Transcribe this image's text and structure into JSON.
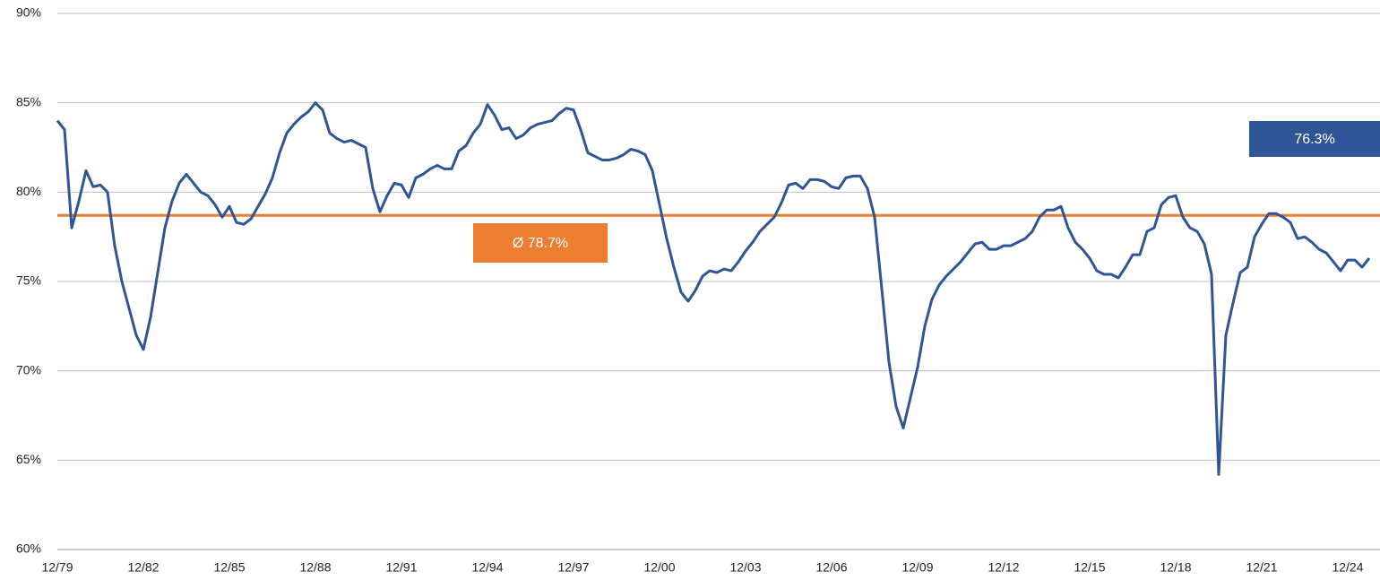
{
  "chart_data": {
    "type": "line",
    "x": [
      "12/79",
      "03/80",
      "06/80",
      "09/80",
      "12/80",
      "03/81",
      "06/81",
      "09/81",
      "12/81",
      "03/82",
      "06/82",
      "09/82",
      "12/82",
      "03/83",
      "06/83",
      "09/83",
      "12/83",
      "03/84",
      "06/84",
      "09/84",
      "12/84",
      "03/85",
      "06/85",
      "09/85",
      "12/85",
      "03/86",
      "06/86",
      "09/86",
      "12/86",
      "03/87",
      "06/87",
      "09/87",
      "12/87",
      "03/88",
      "06/88",
      "09/88",
      "12/88",
      "03/89",
      "06/89",
      "09/89",
      "12/89",
      "03/90",
      "06/90",
      "09/90",
      "12/90",
      "03/91",
      "06/91",
      "09/91",
      "12/91",
      "03/92",
      "06/92",
      "09/92",
      "12/92",
      "03/93",
      "06/93",
      "09/93",
      "12/93",
      "03/94",
      "06/94",
      "09/94",
      "12/94",
      "03/95",
      "06/95",
      "09/95",
      "12/95",
      "03/96",
      "06/96",
      "09/96",
      "12/96",
      "03/97",
      "06/97",
      "09/97",
      "12/97",
      "03/98",
      "06/98",
      "09/98",
      "12/98",
      "03/99",
      "06/99",
      "09/99",
      "12/99",
      "03/00",
      "06/00",
      "09/00",
      "12/00",
      "03/01",
      "06/01",
      "09/01",
      "12/01",
      "03/02",
      "06/02",
      "09/02",
      "12/02",
      "03/03",
      "06/03",
      "09/03",
      "12/03",
      "03/04",
      "06/04",
      "09/04",
      "12/04",
      "03/05",
      "06/05",
      "09/05",
      "12/05",
      "03/06",
      "06/06",
      "09/06",
      "12/06",
      "03/07",
      "06/07",
      "09/07",
      "12/07",
      "03/08",
      "06/08",
      "09/08",
      "12/08",
      "03/09",
      "06/09",
      "09/09",
      "12/09",
      "03/10",
      "06/10",
      "09/10",
      "12/10",
      "03/11",
      "06/11",
      "09/11",
      "12/11",
      "03/12",
      "06/12",
      "09/12",
      "12/12",
      "03/13",
      "06/13",
      "09/13",
      "12/13",
      "03/14",
      "06/14",
      "09/14",
      "12/14",
      "03/15",
      "06/15",
      "09/15",
      "12/15",
      "03/16",
      "06/16",
      "09/16",
      "12/16",
      "03/17",
      "06/17",
      "09/17",
      "12/17",
      "03/18",
      "06/18",
      "09/18",
      "12/18",
      "03/19",
      "06/19",
      "09/19",
      "12/19",
      "03/20",
      "06/20",
      "09/20",
      "12/20",
      "03/21",
      "06/21",
      "09/21",
      "12/21",
      "03/22",
      "06/22",
      "09/22",
      "12/22",
      "03/23",
      "06/23",
      "09/23",
      "12/23",
      "03/24",
      "06/24",
      "09/24",
      "12/24",
      "03/25",
      "06/25",
      "09/25"
    ],
    "values": [
      84.0,
      83.5,
      78.0,
      79.5,
      81.2,
      80.3,
      80.4,
      80.0,
      77.0,
      75.0,
      73.5,
      72.0,
      71.2,
      73.0,
      75.5,
      78.0,
      79.5,
      80.5,
      81.0,
      80.5,
      80.0,
      79.8,
      79.3,
      78.6,
      79.2,
      78.3,
      78.2,
      78.5,
      79.2,
      79.9,
      80.8,
      82.2,
      83.3,
      83.8,
      84.2,
      84.5,
      85.0,
      84.6,
      83.3,
      83.0,
      82.8,
      82.9,
      82.7,
      82.5,
      80.2,
      78.9,
      79.8,
      80.5,
      80.4,
      79.7,
      80.8,
      81.0,
      81.3,
      81.5,
      81.3,
      81.3,
      82.3,
      82.6,
      83.3,
      83.8,
      84.9,
      84.3,
      83.5,
      83.6,
      83.0,
      83.2,
      83.6,
      83.8,
      83.9,
      84.0,
      84.4,
      84.7,
      84.6,
      83.5,
      82.2,
      82.0,
      81.8,
      81.8,
      81.9,
      82.1,
      82.4,
      82.3,
      82.1,
      81.2,
      79.3,
      77.4,
      75.8,
      74.4,
      73.9,
      74.5,
      75.3,
      75.6,
      75.5,
      75.7,
      75.6,
      76.1,
      76.7,
      77.2,
      77.8,
      78.2,
      78.6,
      79.4,
      80.4,
      80.5,
      80.2,
      80.7,
      80.7,
      80.6,
      80.3,
      80.2,
      80.8,
      80.9,
      80.9,
      80.2,
      78.6,
      74.6,
      70.5,
      68.0,
      66.8,
      68.5,
      70.2,
      72.5,
      74.0,
      74.8,
      75.3,
      75.7,
      76.1,
      76.6,
      77.1,
      77.2,
      76.8,
      76.8,
      77.0,
      77.0,
      77.2,
      77.4,
      77.8,
      78.6,
      79.0,
      79.0,
      79.2,
      78.0,
      77.2,
      76.8,
      76.3,
      75.6,
      75.4,
      75.4,
      75.2,
      75.8,
      76.5,
      76.5,
      77.8,
      78.0,
      79.3,
      79.7,
      79.8,
      78.6,
      78.0,
      77.8,
      77.1,
      75.4,
      64.2,
      72.0,
      73.8,
      75.5,
      75.8,
      77.5,
      78.2,
      78.8,
      78.8,
      78.6,
      78.3,
      77.4,
      77.5,
      77.2,
      76.8,
      76.6,
      76.1,
      75.6,
      76.2,
      76.2,
      75.8,
      76.3
    ],
    "color": "#2f5597",
    "ylim": [
      60,
      90
    ],
    "yticks": [
      {
        "value": 60,
        "label": "60%"
      },
      {
        "value": 65,
        "label": "65%"
      },
      {
        "value": 70,
        "label": "70%"
      },
      {
        "value": 75,
        "label": "75%"
      },
      {
        "value": 80,
        "label": "80%"
      },
      {
        "value": 85,
        "label": "85%"
      },
      {
        "value": 90,
        "label": "90%"
      }
    ],
    "grid": true,
    "average": {
      "value": 78.7,
      "label": "Ø 78.7%",
      "color": "#ed7d31"
    },
    "last_value": {
      "value": 76.3,
      "label": "76.3%",
      "color": "#2f5597"
    }
  }
}
